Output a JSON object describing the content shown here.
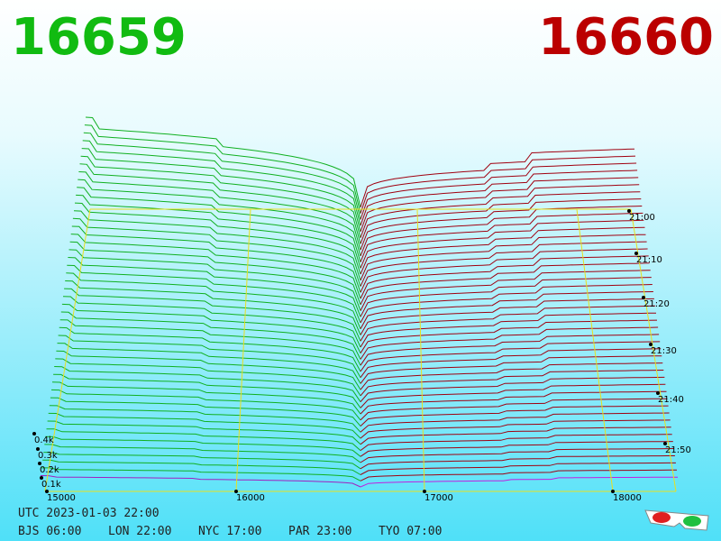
{
  "header": {
    "bid": "16659",
    "ask": "16660"
  },
  "price_axis": {
    "ticks": [
      "15000",
      "16000",
      "17000",
      "18000"
    ]
  },
  "volume_axis": {
    "ticks": [
      "0.4k",
      "0.3k",
      "0.2k",
      "0.1k"
    ]
  },
  "time_axis": {
    "ticks": [
      "21:00",
      "21:10",
      "21:20",
      "21:30",
      "21:40",
      "21:50"
    ]
  },
  "footer": {
    "utc": "UTC 2023-01-03 22:00",
    "cities": [
      "BJS 06:00",
      "LON 22:00",
      "NYC 17:00",
      "PAR 23:00",
      "TYO 07:00"
    ]
  }
}
